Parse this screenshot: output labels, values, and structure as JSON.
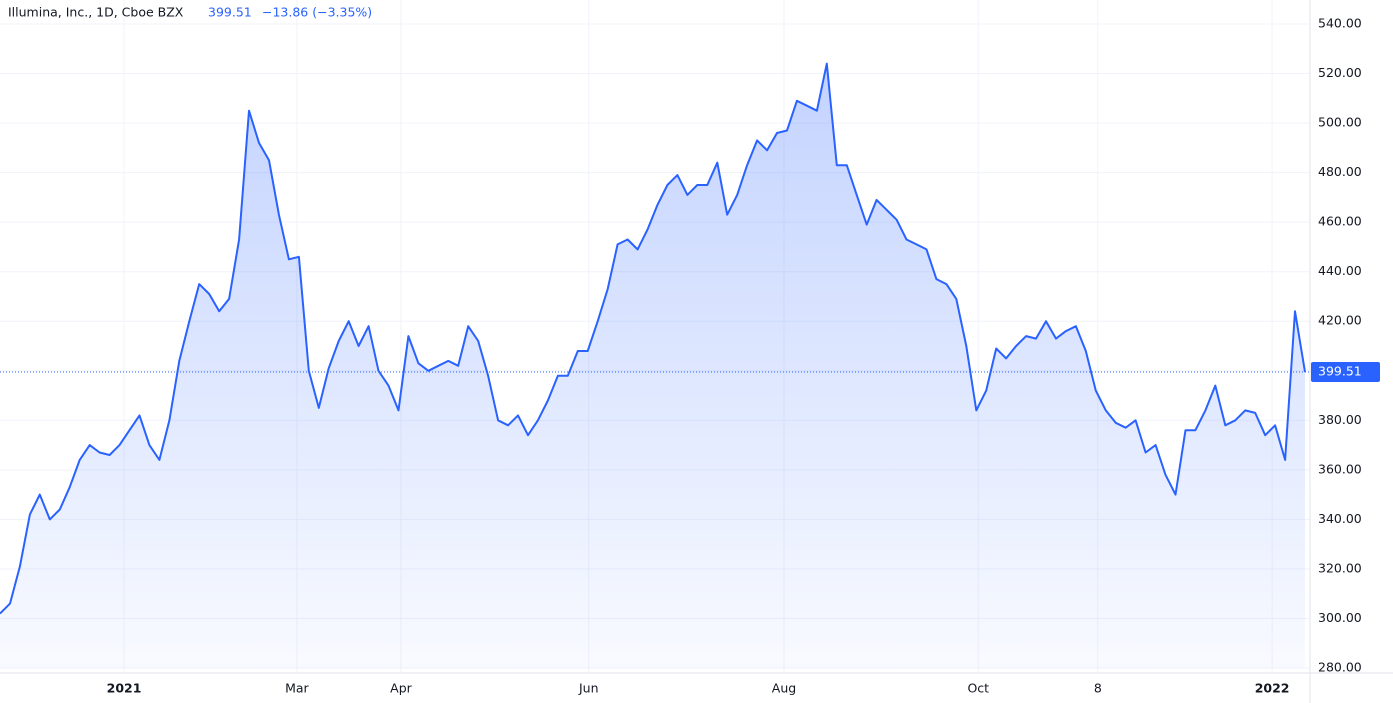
{
  "chart_data": {
    "type": "line",
    "title": "Illumina, Inc., 1D, Cboe BZX",
    "change_label": "−13.86 (−3.35%)",
    "color": "#2962ff",
    "grid": true,
    "xlim": [
      0,
      131
    ],
    "xticks": [
      {
        "value": 12.45,
        "label": "2021"
      },
      {
        "value": 29.8,
        "label": "Mar"
      },
      {
        "value": 40.25,
        "label": "Apr"
      },
      {
        "value": 59.1,
        "label": "Jun"
      },
      {
        "value": 78.7,
        "label": "Aug"
      },
      {
        "value": 98.2,
        "label": "Oct"
      },
      {
        "value": 110.2,
        "label": "8"
      },
      {
        "value": 127.7,
        "label": "2022"
      }
    ],
    "ylim": [
      280,
      540
    ],
    "yticks": [
      {
        "value": 280,
        "label": "280.00"
      },
      {
        "value": 300,
        "label": "300.00"
      },
      {
        "value": 320,
        "label": "320.00"
      },
      {
        "value": 340,
        "label": "340.00"
      },
      {
        "value": 360,
        "label": "360.00"
      },
      {
        "value": 380,
        "label": "380.00"
      },
      {
        "value": 400,
        "label": "400.00"
      },
      {
        "value": 420,
        "label": "420.00"
      },
      {
        "value": 440,
        "label": "440.00"
      },
      {
        "value": 460,
        "label": "460.00"
      },
      {
        "value": 480,
        "label": "480.00"
      },
      {
        "value": 500,
        "label": "500.00"
      },
      {
        "value": 520,
        "label": "520.00"
      },
      {
        "value": 540,
        "label": "540.00"
      }
    ],
    "values": [
      302,
      306,
      321,
      342,
      350,
      340,
      344,
      353,
      364,
      370,
      367,
      366,
      370,
      376,
      382,
      370,
      364,
      380,
      404,
      420,
      435,
      431,
      424,
      429,
      453,
      505,
      492,
      485,
      463,
      445,
      446,
      400,
      385,
      401,
      412,
      420,
      410,
      418,
      400,
      394,
      384,
      414,
      403,
      400,
      402,
      404,
      402,
      418,
      412,
      398,
      380,
      378,
      382,
      374,
      380,
      388,
      398,
      398,
      408,
      408,
      420,
      433,
      451,
      453,
      449,
      457,
      467,
      475,
      479,
      471,
      475,
      475,
      484,
      463,
      471,
      483,
      493,
      489,
      496,
      497,
      509,
      507,
      505,
      524,
      483,
      483,
      471,
      459,
      469,
      465,
      461,
      453,
      451,
      449,
      437,
      435,
      429,
      410,
      384,
      392,
      409,
      405,
      410,
      414,
      413,
      420,
      413,
      416,
      418,
      408,
      392,
      384,
      379,
      377,
      380,
      367,
      370,
      358,
      350,
      376,
      376,
      384,
      394,
      378,
      380,
      384,
      383,
      374,
      378,
      364,
      424,
      399.51
    ]
  }
}
